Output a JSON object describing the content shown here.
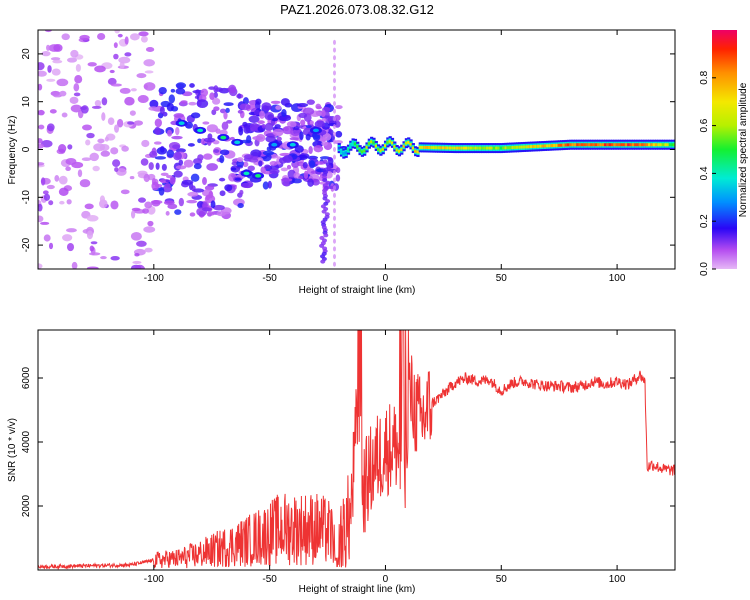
{
  "title": "PAZ1.2026.073.08.32.G12",
  "chart_data": [
    {
      "type": "heatmap",
      "xlabel": "Height of straight line (km)",
      "ylabel": "Frequency (Hz)",
      "xlim": [
        -150,
        125
      ],
      "ylim": [
        -25,
        25
      ],
      "xticks": [
        -100,
        -50,
        0,
        50,
        100
      ],
      "xtick_labels": [
        "-100",
        "-50",
        "0",
        "50",
        "100"
      ],
      "yticks": [
        -20,
        -10,
        0,
        10,
        20
      ],
      "ytick_labels": [
        "-20",
        "-10",
        "0",
        "10",
        "20"
      ],
      "colorbar": {
        "label": "Normalized spectral amplitude",
        "range": [
          0,
          1
        ],
        "ticks": [
          0.0,
          0.2,
          0.4,
          0.6,
          0.8
        ],
        "tick_labels": [
          "0.0",
          "0.2",
          "0.4",
          "0.6",
          "0.8"
        ]
      },
      "spectral_line": {
        "description_points": [
          {
            "height_km": -20,
            "freq_hz": 0,
            "amplitude": 0.25
          },
          {
            "height_km": -10,
            "freq_hz": 0.5,
            "amplitude": 0.55
          },
          {
            "height_km": 0,
            "freq_hz": 0.8,
            "amplitude": 0.6
          },
          {
            "height_km": 10,
            "freq_hz": 0.5,
            "amplitude": 0.7
          },
          {
            "height_km": 30,
            "freq_hz": 0.3,
            "amplitude": 0.7
          },
          {
            "height_km": 50,
            "freq_hz": 0.3,
            "amplitude": 0.55
          },
          {
            "height_km": 80,
            "freq_hz": 1.0,
            "amplitude": 0.85
          },
          {
            "height_km": 110,
            "freq_hz": 1.0,
            "amplitude": 0.9
          },
          {
            "height_km": 125,
            "freq_hz": 1.0,
            "amplitude": 0.5
          }
        ]
      },
      "blobs": [
        {
          "x": -88,
          "y": 5.5,
          "a": 0.35
        },
        {
          "x": -80,
          "y": 4.0,
          "a": 0.4
        },
        {
          "x": -70,
          "y": 2.5,
          "a": 0.45
        },
        {
          "x": -64,
          "y": 1.5,
          "a": 0.35
        },
        {
          "x": -60,
          "y": -5.0,
          "a": 0.4
        },
        {
          "x": -55,
          "y": -5.5,
          "a": 0.45
        },
        {
          "x": -48,
          "y": 1.0,
          "a": 0.3
        },
        {
          "x": -40,
          "y": 1.0,
          "a": 0.35
        },
        {
          "x": -30,
          "y": 4.0,
          "a": 0.3
        },
        {
          "x": -18,
          "y": 0.0,
          "a": 0.35
        }
      ]
    },
    {
      "type": "line",
      "xlabel": "Height of straight line (km)",
      "ylabel": "SNR (10 * v/v)",
      "xlim": [
        -150,
        125
      ],
      "ylim": [
        0,
        7500
      ],
      "xticks": [
        -100,
        -50,
        0,
        50,
        100
      ],
      "xtick_labels": [
        "-100",
        "-50",
        "0",
        "50",
        "100"
      ],
      "yticks": [
        2000,
        4000,
        6000
      ],
      "ytick_labels": [
        "2000",
        "4000",
        "6000"
      ],
      "color": "#ee3333",
      "series": [
        {
          "name": "SNR",
          "x": [
            -150,
            -130,
            -110,
            -100,
            -90,
            -80,
            -70,
            -60,
            -50,
            -45,
            -40,
            -35,
            -30,
            -25,
            -20,
            -15,
            -12,
            -10,
            -5,
            0,
            5,
            8,
            10,
            15,
            20,
            25,
            30,
            35,
            40,
            45,
            50,
            55,
            60,
            65,
            70,
            75,
            80,
            85,
            90,
            95,
            100,
            105,
            110,
            112,
            113,
            115,
            120,
            125
          ],
          "y": [
            100,
            130,
            160,
            300,
            350,
            500,
            700,
            900,
            1150,
            1300,
            1300,
            1300,
            1300,
            1200,
            900,
            1700,
            5000,
            2400,
            3300,
            3800,
            3900,
            2500,
            5600,
            4600,
            5200,
            5500,
            5850,
            6000,
            5900,
            5950,
            5600,
            5850,
            5900,
            5800,
            5750,
            5750,
            5700,
            5750,
            5900,
            5800,
            5900,
            5800,
            6100,
            5900,
            3200,
            3300,
            3150,
            3100
          ]
        }
      ]
    }
  ]
}
